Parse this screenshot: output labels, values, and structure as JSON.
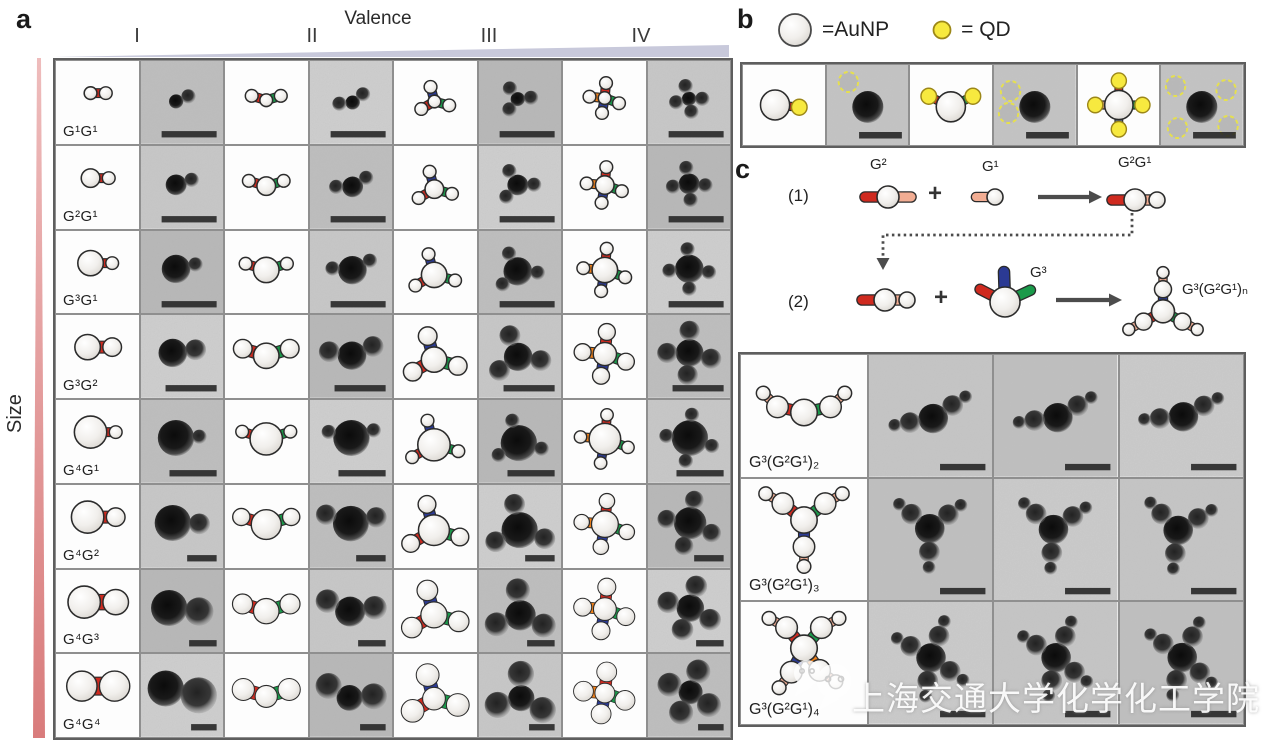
{
  "panel_a": {
    "label": "a",
    "valence_axis": {
      "title": "Valence",
      "ticks": [
        "I",
        "II",
        "III",
        "IV"
      ]
    },
    "size_axis": {
      "title": "Size"
    },
    "rows": [
      {
        "label": "G¹G¹",
        "center": "G1",
        "satellite": "G1"
      },
      {
        "label": "G²G¹",
        "center": "G2",
        "satellite": "G1"
      },
      {
        "label": "G³G¹",
        "center": "G3",
        "satellite": "G1"
      },
      {
        "label": "G³G²",
        "center": "G3",
        "satellite": "G2"
      },
      {
        "label": "G⁴G¹",
        "center": "G4",
        "satellite": "G1"
      },
      {
        "label": "G⁴G²",
        "center": "G4",
        "satellite": "G2"
      },
      {
        "label": "G⁴G³",
        "center": "G4",
        "satellite": "G3"
      },
      {
        "label": "G⁴G⁴",
        "center": "G4",
        "satellite": "G4"
      }
    ]
  },
  "panel_b": {
    "label": "b",
    "legend": [
      {
        "name": "AuNP",
        "text": "=AuNP"
      },
      {
        "name": "QD",
        "text": "= QD"
      }
    ],
    "valences": [
      1,
      2,
      4
    ]
  },
  "panel_c": {
    "label": "c",
    "steps": [
      {
        "index": "(1)",
        "plus": "+",
        "reactant1_label": "G²",
        "reactant2_label": "G¹",
        "product_label": "G²G¹"
      },
      {
        "index": "(2)",
        "plus": "+",
        "reactant2_label": "G³",
        "product_label": "G³(G²G¹)ₙ"
      }
    ],
    "rows": [
      {
        "label": "G³(G²G¹)₂",
        "arms": 2
      },
      {
        "label": "G³(G²G¹)₃",
        "arms": 3
      },
      {
        "label": "G³(G²G¹)₄",
        "arms": 4
      }
    ]
  },
  "watermark": {
    "text": "上海交通大学化学化工学院"
  },
  "colors": {
    "red": "#cf2a1f",
    "green": "#1a9a4a",
    "blue": "#2b3a94",
    "orange": "#f08019",
    "peach": "#f2ad93",
    "qd_yellow": "#f7e93f",
    "qd_stroke": "#9c8718",
    "slate": "#5c6b88",
    "tan": "#c29176",
    "valence_wedge": "#c8c9db",
    "size_wedge": "#dc8f8f"
  }
}
